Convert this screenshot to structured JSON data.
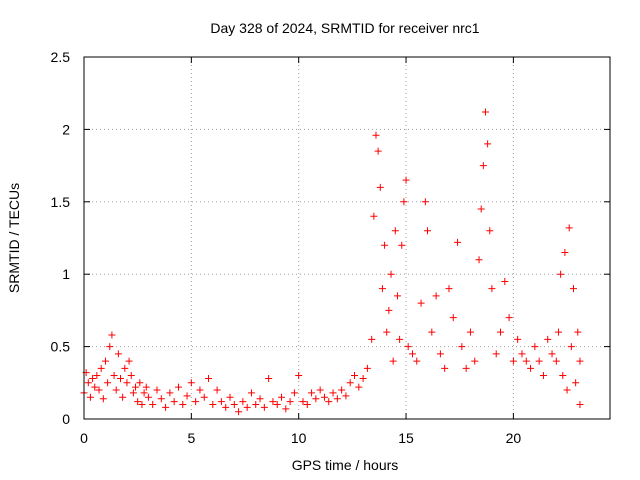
{
  "chart_data": {
    "type": "scatter",
    "title": "Day 328 of 2024, SRMTID for receiver nrc1",
    "xlabel": "GPS time / hours",
    "ylabel": "SRMTID / TECUs",
    "xlim": [
      0,
      24.5
    ],
    "ylim": [
      0,
      2.5
    ],
    "x_ticks": [
      "0",
      "5",
      "10",
      "15",
      "20"
    ],
    "y_ticks": [
      "0",
      "0.5",
      "1",
      "1.5",
      "2",
      "2.5"
    ],
    "grid": true,
    "marker": "+",
    "series": [
      {
        "name": "SRMTID",
        "color": "#ff0000",
        "points": [
          [
            0.0,
            0.18
          ],
          [
            0.1,
            0.32
          ],
          [
            0.2,
            0.25
          ],
          [
            0.3,
            0.15
          ],
          [
            0.4,
            0.28
          ],
          [
            0.5,
            0.22
          ],
          [
            0.6,
            0.3
          ],
          [
            0.7,
            0.2
          ],
          [
            0.8,
            0.35
          ],
          [
            0.9,
            0.14
          ],
          [
            1.0,
            0.4
          ],
          [
            1.1,
            0.25
          ],
          [
            1.2,
            0.5
          ],
          [
            1.3,
            0.58
          ],
          [
            1.4,
            0.3
          ],
          [
            1.5,
            0.2
          ],
          [
            1.6,
            0.45
          ],
          [
            1.7,
            0.28
          ],
          [
            1.8,
            0.15
          ],
          [
            1.9,
            0.35
          ],
          [
            2.0,
            0.25
          ],
          [
            2.1,
            0.4
          ],
          [
            2.2,
            0.3
          ],
          [
            2.3,
            0.18
          ],
          [
            2.4,
            0.22
          ],
          [
            2.5,
            0.12
          ],
          [
            2.6,
            0.25
          ],
          [
            2.7,
            0.1
          ],
          [
            2.8,
            0.18
          ],
          [
            2.9,
            0.22
          ],
          [
            3.0,
            0.15
          ],
          [
            3.2,
            0.1
          ],
          [
            3.4,
            0.2
          ],
          [
            3.6,
            0.14
          ],
          [
            3.8,
            0.08
          ],
          [
            4.0,
            0.18
          ],
          [
            4.2,
            0.12
          ],
          [
            4.4,
            0.22
          ],
          [
            4.6,
            0.1
          ],
          [
            4.8,
            0.16
          ],
          [
            5.0,
            0.25
          ],
          [
            5.2,
            0.12
          ],
          [
            5.4,
            0.2
          ],
          [
            5.6,
            0.15
          ],
          [
            5.8,
            0.28
          ],
          [
            6.0,
            0.1
          ],
          [
            6.2,
            0.2
          ],
          [
            6.4,
            0.12
          ],
          [
            6.6,
            0.08
          ],
          [
            6.8,
            0.15
          ],
          [
            7.0,
            0.1
          ],
          [
            7.2,
            0.05
          ],
          [
            7.4,
            0.12
          ],
          [
            7.6,
            0.08
          ],
          [
            7.8,
            0.18
          ],
          [
            8.0,
            0.1
          ],
          [
            8.2,
            0.14
          ],
          [
            8.4,
            0.08
          ],
          [
            8.6,
            0.28
          ],
          [
            8.8,
            0.12
          ],
          [
            9.0,
            0.1
          ],
          [
            9.2,
            0.15
          ],
          [
            9.4,
            0.07
          ],
          [
            9.6,
            0.12
          ],
          [
            9.8,
            0.18
          ],
          [
            10.0,
            0.3
          ],
          [
            10.2,
            0.12
          ],
          [
            10.4,
            0.1
          ],
          [
            10.6,
            0.18
          ],
          [
            10.8,
            0.14
          ],
          [
            11.0,
            0.2
          ],
          [
            11.2,
            0.15
          ],
          [
            11.4,
            0.12
          ],
          [
            11.6,
            0.18
          ],
          [
            11.8,
            0.14
          ],
          [
            12.0,
            0.2
          ],
          [
            12.2,
            0.16
          ],
          [
            12.4,
            0.25
          ],
          [
            12.6,
            0.3
          ],
          [
            12.8,
            0.22
          ],
          [
            13.0,
            0.28
          ],
          [
            13.2,
            0.35
          ],
          [
            13.4,
            0.55
          ],
          [
            13.5,
            1.4
          ],
          [
            13.6,
            1.96
          ],
          [
            13.7,
            1.85
          ],
          [
            13.8,
            1.6
          ],
          [
            13.9,
            0.9
          ],
          [
            14.0,
            1.2
          ],
          [
            14.1,
            0.6
          ],
          [
            14.2,
            0.75
          ],
          [
            14.3,
            1.0
          ],
          [
            14.4,
            0.4
          ],
          [
            14.5,
            1.3
          ],
          [
            14.6,
            0.85
          ],
          [
            14.7,
            0.55
          ],
          [
            14.8,
            1.2
          ],
          [
            14.9,
            1.5
          ],
          [
            15.0,
            1.65
          ],
          [
            15.1,
            0.5
          ],
          [
            15.3,
            0.45
          ],
          [
            15.5,
            0.4
          ],
          [
            15.7,
            0.8
          ],
          [
            15.9,
            1.5
          ],
          [
            16.0,
            1.3
          ],
          [
            16.2,
            0.6
          ],
          [
            16.4,
            0.85
          ],
          [
            16.6,
            0.45
          ],
          [
            16.8,
            0.35
          ],
          [
            17.0,
            0.9
          ],
          [
            17.2,
            0.7
          ],
          [
            17.4,
            1.22
          ],
          [
            17.6,
            0.5
          ],
          [
            17.8,
            0.35
          ],
          [
            18.0,
            0.6
          ],
          [
            18.2,
            0.4
          ],
          [
            18.4,
            1.1
          ],
          [
            18.5,
            1.45
          ],
          [
            18.6,
            1.75
          ],
          [
            18.7,
            2.12
          ],
          [
            18.8,
            1.9
          ],
          [
            18.9,
            1.3
          ],
          [
            19.0,
            0.9
          ],
          [
            19.2,
            0.45
          ],
          [
            19.4,
            0.6
          ],
          [
            19.6,
            0.95
          ],
          [
            19.8,
            0.7
          ],
          [
            20.0,
            0.4
          ],
          [
            20.2,
            0.55
          ],
          [
            20.4,
            0.45
          ],
          [
            20.6,
            0.4
          ],
          [
            20.8,
            0.35
          ],
          [
            21.0,
            0.5
          ],
          [
            21.2,
            0.4
          ],
          [
            21.4,
            0.3
          ],
          [
            21.6,
            0.55
          ],
          [
            21.8,
            0.45
          ],
          [
            22.0,
            0.4
          ],
          [
            22.1,
            0.6
          ],
          [
            22.2,
            1.0
          ],
          [
            22.3,
            0.3
          ],
          [
            22.4,
            1.15
          ],
          [
            22.5,
            0.2
          ],
          [
            22.6,
            1.32
          ],
          [
            22.7,
            0.5
          ],
          [
            22.8,
            0.9
          ],
          [
            22.9,
            0.25
          ],
          [
            23.0,
            0.6
          ],
          [
            23.1,
            0.4
          ],
          [
            23.1,
            0.1
          ]
        ]
      }
    ]
  }
}
